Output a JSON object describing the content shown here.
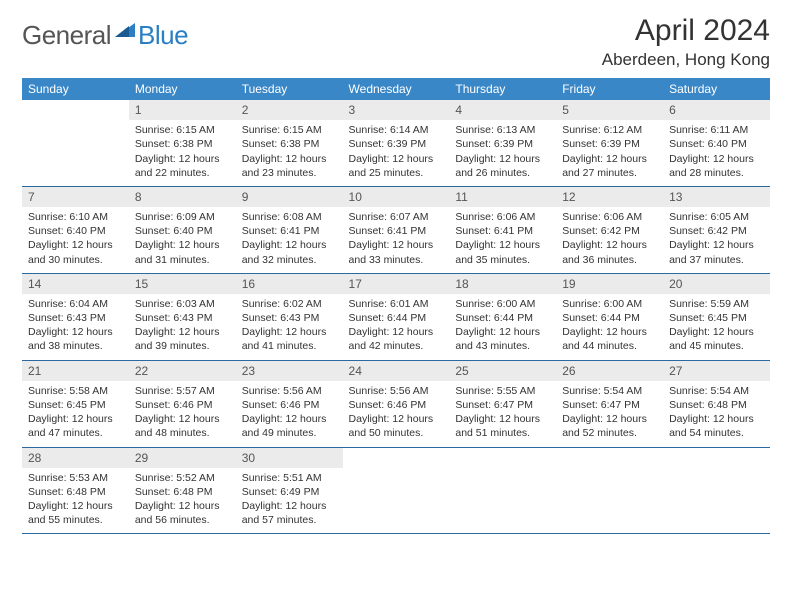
{
  "brand": {
    "general": "General",
    "blue": "Blue"
  },
  "title": "April 2024",
  "location": "Aberdeen, Hong Kong",
  "colors": {
    "header_bg": "#3a87c8",
    "header_text": "#ffffff",
    "daynum_bg": "#ebebeb",
    "row_border": "#2a6aa0",
    "brand_blue": "#2a7ec4",
    "brand_gray": "#555555",
    "text": "#333333",
    "page_bg": "#ffffff"
  },
  "font": {
    "family": "Arial",
    "title_size": 30,
    "location_size": 17,
    "header_size": 12,
    "cell_size": 10.5
  },
  "weekdays": [
    "Sunday",
    "Monday",
    "Tuesday",
    "Wednesday",
    "Thursday",
    "Friday",
    "Saturday"
  ],
  "weeks": [
    [
      {
        "day": "",
        "text": ""
      },
      {
        "day": "1",
        "text": "Sunrise: 6:15 AM\nSunset: 6:38 PM\nDaylight: 12 hours and 22 minutes."
      },
      {
        "day": "2",
        "text": "Sunrise: 6:15 AM\nSunset: 6:38 PM\nDaylight: 12 hours and 23 minutes."
      },
      {
        "day": "3",
        "text": "Sunrise: 6:14 AM\nSunset: 6:39 PM\nDaylight: 12 hours and 25 minutes."
      },
      {
        "day": "4",
        "text": "Sunrise: 6:13 AM\nSunset: 6:39 PM\nDaylight: 12 hours and 26 minutes."
      },
      {
        "day": "5",
        "text": "Sunrise: 6:12 AM\nSunset: 6:39 PM\nDaylight: 12 hours and 27 minutes."
      },
      {
        "day": "6",
        "text": "Sunrise: 6:11 AM\nSunset: 6:40 PM\nDaylight: 12 hours and 28 minutes."
      }
    ],
    [
      {
        "day": "7",
        "text": "Sunrise: 6:10 AM\nSunset: 6:40 PM\nDaylight: 12 hours and 30 minutes."
      },
      {
        "day": "8",
        "text": "Sunrise: 6:09 AM\nSunset: 6:40 PM\nDaylight: 12 hours and 31 minutes."
      },
      {
        "day": "9",
        "text": "Sunrise: 6:08 AM\nSunset: 6:41 PM\nDaylight: 12 hours and 32 minutes."
      },
      {
        "day": "10",
        "text": "Sunrise: 6:07 AM\nSunset: 6:41 PM\nDaylight: 12 hours and 33 minutes."
      },
      {
        "day": "11",
        "text": "Sunrise: 6:06 AM\nSunset: 6:41 PM\nDaylight: 12 hours and 35 minutes."
      },
      {
        "day": "12",
        "text": "Sunrise: 6:06 AM\nSunset: 6:42 PM\nDaylight: 12 hours and 36 minutes."
      },
      {
        "day": "13",
        "text": "Sunrise: 6:05 AM\nSunset: 6:42 PM\nDaylight: 12 hours and 37 minutes."
      }
    ],
    [
      {
        "day": "14",
        "text": "Sunrise: 6:04 AM\nSunset: 6:43 PM\nDaylight: 12 hours and 38 minutes."
      },
      {
        "day": "15",
        "text": "Sunrise: 6:03 AM\nSunset: 6:43 PM\nDaylight: 12 hours and 39 minutes."
      },
      {
        "day": "16",
        "text": "Sunrise: 6:02 AM\nSunset: 6:43 PM\nDaylight: 12 hours and 41 minutes."
      },
      {
        "day": "17",
        "text": "Sunrise: 6:01 AM\nSunset: 6:44 PM\nDaylight: 12 hours and 42 minutes."
      },
      {
        "day": "18",
        "text": "Sunrise: 6:00 AM\nSunset: 6:44 PM\nDaylight: 12 hours and 43 minutes."
      },
      {
        "day": "19",
        "text": "Sunrise: 6:00 AM\nSunset: 6:44 PM\nDaylight: 12 hours and 44 minutes."
      },
      {
        "day": "20",
        "text": "Sunrise: 5:59 AM\nSunset: 6:45 PM\nDaylight: 12 hours and 45 minutes."
      }
    ],
    [
      {
        "day": "21",
        "text": "Sunrise: 5:58 AM\nSunset: 6:45 PM\nDaylight: 12 hours and 47 minutes."
      },
      {
        "day": "22",
        "text": "Sunrise: 5:57 AM\nSunset: 6:46 PM\nDaylight: 12 hours and 48 minutes."
      },
      {
        "day": "23",
        "text": "Sunrise: 5:56 AM\nSunset: 6:46 PM\nDaylight: 12 hours and 49 minutes."
      },
      {
        "day": "24",
        "text": "Sunrise: 5:56 AM\nSunset: 6:46 PM\nDaylight: 12 hours and 50 minutes."
      },
      {
        "day": "25",
        "text": "Sunrise: 5:55 AM\nSunset: 6:47 PM\nDaylight: 12 hours and 51 minutes."
      },
      {
        "day": "26",
        "text": "Sunrise: 5:54 AM\nSunset: 6:47 PM\nDaylight: 12 hours and 52 minutes."
      },
      {
        "day": "27",
        "text": "Sunrise: 5:54 AM\nSunset: 6:48 PM\nDaylight: 12 hours and 54 minutes."
      }
    ],
    [
      {
        "day": "28",
        "text": "Sunrise: 5:53 AM\nSunset: 6:48 PM\nDaylight: 12 hours and 55 minutes."
      },
      {
        "day": "29",
        "text": "Sunrise: 5:52 AM\nSunset: 6:48 PM\nDaylight: 12 hours and 56 minutes."
      },
      {
        "day": "30",
        "text": "Sunrise: 5:51 AM\nSunset: 6:49 PM\nDaylight: 12 hours and 57 minutes."
      },
      {
        "day": "",
        "text": ""
      },
      {
        "day": "",
        "text": ""
      },
      {
        "day": "",
        "text": ""
      },
      {
        "day": "",
        "text": ""
      }
    ]
  ]
}
